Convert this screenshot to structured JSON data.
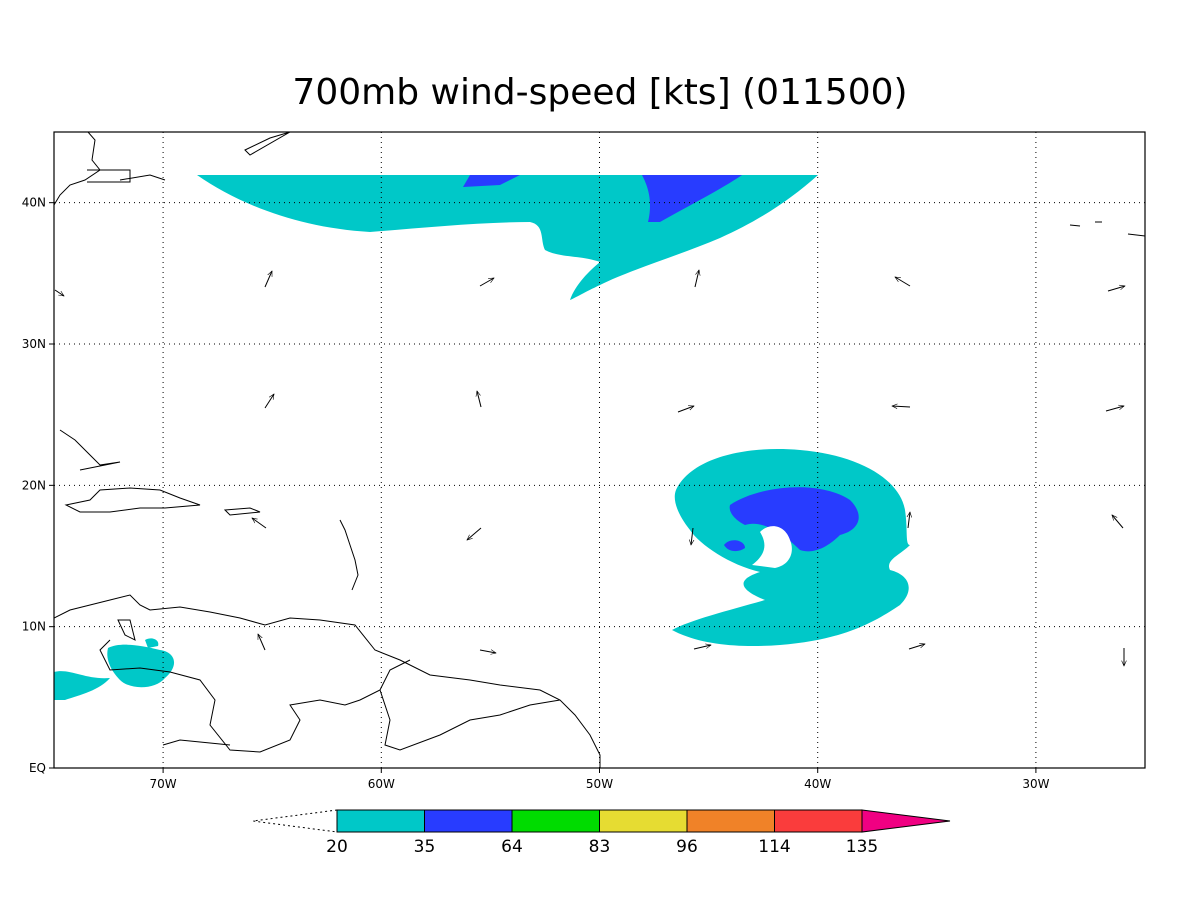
{
  "title": "700mb wind-speed [kts] (011500)",
  "map": {
    "lon_ticks": [
      {
        "value": -70,
        "label": "70W"
      },
      {
        "value": -60,
        "label": "60W"
      },
      {
        "value": -50,
        "label": "50W"
      },
      {
        "value": -40,
        "label": "40W"
      },
      {
        "value": -30,
        "label": "30W"
      }
    ],
    "lat_ticks": [
      {
        "value": 0,
        "label": "EQ"
      },
      {
        "value": 10,
        "label": "10N"
      },
      {
        "value": 20,
        "label": "20N"
      },
      {
        "value": 30,
        "label": "30N"
      },
      {
        "value": 40,
        "label": "40N"
      }
    ],
    "lon_range": [
      -75,
      -25
    ],
    "lat_range": [
      0,
      45
    ]
  },
  "colorbar": {
    "levels": [
      20,
      35,
      64,
      83,
      96,
      114,
      135
    ],
    "colors": [
      "#00c8c8",
      "#283cff",
      "#00dc00",
      "#e6dc32",
      "#f08228",
      "#fa3c3c",
      "#f00082"
    ]
  }
}
